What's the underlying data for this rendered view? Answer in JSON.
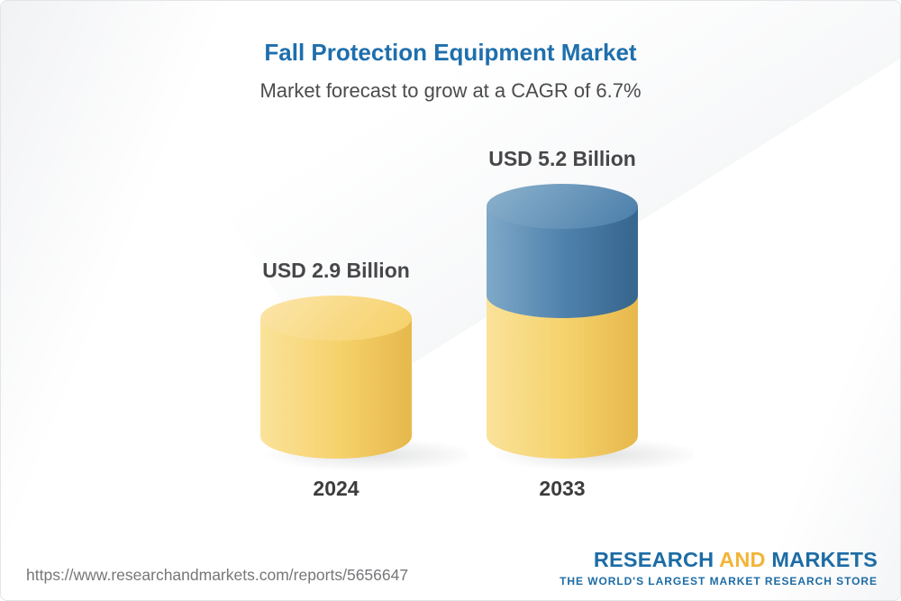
{
  "header": {
    "title": "Fall Protection Equipment Market",
    "subtitle": "Market forecast to grow at a CAGR of 6.7%",
    "title_color": "#1E6FAD"
  },
  "chart_data": {
    "type": "bar",
    "variant": "3d-cylinder",
    "title": "Fall Protection Equipment Market",
    "subtitle": "Market forecast to grow at a CAGR of 6.7%",
    "unit": "USD Billion",
    "cagr_percent": 6.7,
    "categories": [
      "2024",
      "2033"
    ],
    "values": [
      2.9,
      5.2
    ],
    "value_labels": [
      "USD 2.9 Billion",
      "USD 5.2 Billion"
    ],
    "ylim": [
      0,
      5.2
    ],
    "grid": false,
    "legend": "none",
    "bars": [
      {
        "category": "2024",
        "value": 2.9,
        "label": "USD 2.9 Billion",
        "segments": [
          {
            "value": 2.9,
            "color": "#F6D26C",
            "light": "#FAE29A",
            "dark": "#E7BA4E",
            "top": "#FBE3A3"
          }
        ]
      },
      {
        "category": "2033",
        "value": 5.2,
        "label": "USD 5.2 Billion",
        "segments": [
          {
            "value": 2.9,
            "color": "#F6D26C",
            "light": "#FAE29A",
            "dark": "#E7BA4E",
            "top": "#FBE3A3"
          },
          {
            "value": 2.3,
            "color": "#4E81AC",
            "light": "#7FA9C8",
            "dark": "#38678F",
            "top": "#85ACC9"
          }
        ]
      }
    ]
  },
  "footer": {
    "url": "https://www.researchandmarkets.com/reports/5656647",
    "logo": {
      "research": "RESEARCH",
      "and": "AND",
      "markets": "MARKETS",
      "tagline": "THE WORLD'S LARGEST MARKET RESEARCH STORE",
      "blue": "#1D6CA5",
      "gold": "#F2B438"
    }
  }
}
